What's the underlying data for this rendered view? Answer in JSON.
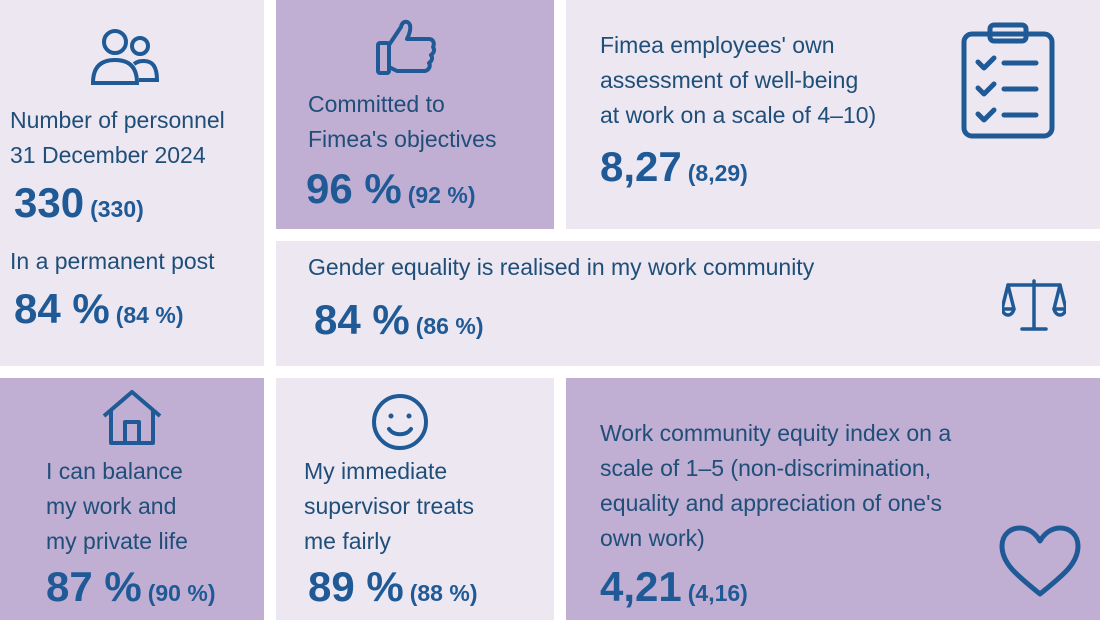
{
  "personnel": {
    "label_line1": "Number of personnel",
    "label_line2": "31 December 2024",
    "value": "330",
    "previous": "(330)",
    "permanent_label": "In a permanent post",
    "permanent_value": "84 %",
    "permanent_previous": "(84 %)",
    "icon": "people-icon"
  },
  "committed": {
    "label_line1": "Committed to",
    "label_line2": "Fimea's objectives",
    "value": "96 %",
    "previous": "(92 %)",
    "icon": "thumbs-up-icon"
  },
  "wellbeing": {
    "label_line1": "Fimea employees' own",
    "label_line2": "assessment of well-being",
    "label_line3": "at work on a scale of 4–10)",
    "value": "8,27",
    "previous": "(8,29)",
    "icon": "clipboard-icon"
  },
  "gender": {
    "label": "Gender equality is realised in my work community",
    "value": "84 %",
    "previous": "(86 %)",
    "icon": "scales-icon"
  },
  "balance": {
    "label_line1": "I can balance",
    "label_line2": "my work and",
    "label_line3": "my private life",
    "value": "87 %",
    "previous": "(90 %)",
    "icon": "house-icon"
  },
  "supervisor": {
    "label_line1": "My immediate",
    "label_line2": "supervisor treats",
    "label_line3": "me fairly",
    "value": "89 %",
    "previous": "(88 %)",
    "icon": "smiley-icon"
  },
  "equity": {
    "label_line1": "Work community equity index on a",
    "label_line2": "scale of 1–5 (non-discrimination,",
    "label_line3": "equality and appreciation of one's",
    "label_line4": "own work)",
    "value": "4,21",
    "previous": "(4,16)",
    "icon": "heart-icon"
  },
  "colors": {
    "light_tile": "#ece7f1",
    "purple_tile": "#c0aed3",
    "text": "#1f4e79",
    "number": "#1f5a96"
  }
}
